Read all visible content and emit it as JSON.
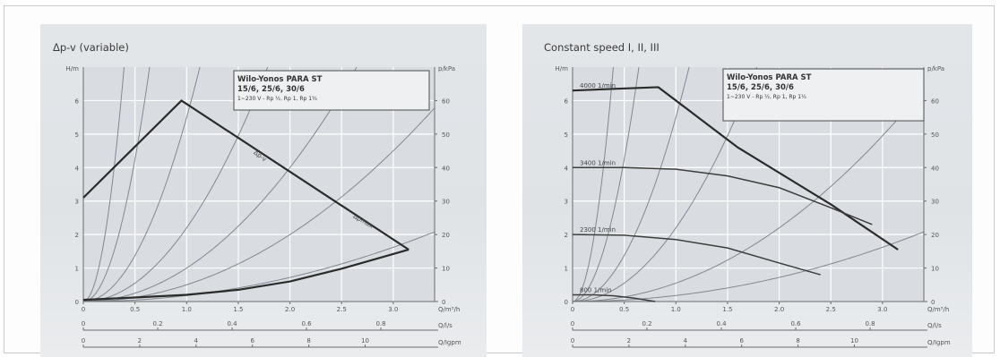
{
  "chart_data": [
    {
      "type": "line",
      "title": "Δp-v (variable)",
      "xlabel": "Q/m³/h",
      "ylabel": "H/m",
      "ylabel_right": "p/kPa",
      "xlim": [
        0,
        3.4
      ],
      "ylim": [
        0,
        7
      ],
      "y2lim": [
        0,
        70
      ],
      "x_ticks": [
        "0",
        "0.5",
        "1.0",
        "1.5",
        "2.0",
        "2.5",
        "3.0"
      ],
      "y_ticks": [
        "0",
        "1",
        "2",
        "3",
        "4",
        "5",
        "6"
      ],
      "y2_ticks": [
        "0",
        "10",
        "20",
        "30",
        "40",
        "50",
        "60"
      ],
      "secondary_axes": [
        {
          "label": "Q/l/s",
          "ticks": [
            "0",
            "0.2",
            "0.4",
            "0.6",
            "0.8"
          ],
          "values": [
            0,
            0.2,
            0.4,
            0.6,
            0.8
          ]
        },
        {
          "label": "Q/Igpm",
          "ticks": [
            "0",
            "2",
            "4",
            "6",
            "8",
            "10"
          ],
          "values": [
            0,
            2,
            4,
            6,
            8,
            10
          ]
        }
      ],
      "box": {
        "title": "Wilo-Yonos PARA ST",
        "subtitle": "15/6, 25/6, 30/6",
        "note": "1~230 V - Rp ½, Rp 1, Rp 1¼"
      },
      "annotations": [
        {
          "text": "Δp-v",
          "x": 1.7,
          "y": 4.3,
          "angle": 36
        },
        {
          "text": "Δpmax",
          "x": 2.7,
          "y": 2.35,
          "angle": 30
        }
      ],
      "series": [
        {
          "values_x": [
            0,
            0.95,
            3.15
          ],
          "values_y": [
            3.1,
            6.0,
            1.55
          ],
          "role": "upper"
        },
        {
          "values_x": [
            0,
            0.5,
            1.0,
            1.5,
            2.0,
            2.5,
            3.15
          ],
          "values_y": [
            0.05,
            0.12,
            0.2,
            0.35,
            0.6,
            0.98,
            1.55
          ],
          "role": "lower"
        }
      ],
      "system_curve_coefficients": [
        45,
        17,
        5.5,
        2.2,
        1.0,
        0.5,
        0.18
      ],
      "grid": true
    },
    {
      "type": "line",
      "title": "Constant speed I, II, III",
      "xlabel": "Q/m³/h",
      "ylabel": "H/m",
      "ylabel_right": "p/kPa",
      "xlim": [
        0,
        3.4
      ],
      "ylim": [
        0,
        7
      ],
      "y2lim": [
        0,
        70
      ],
      "x_ticks": [
        "0",
        "0.5",
        "1.0",
        "1.5",
        "2.0",
        "2.5",
        "3.0"
      ],
      "y_ticks": [
        "0",
        "1",
        "2",
        "3",
        "4",
        "5",
        "6"
      ],
      "y2_ticks": [
        "0",
        "10",
        "20",
        "30",
        "40",
        "50",
        "60"
      ],
      "secondary_axes": [
        {
          "label": "Q/l/s",
          "ticks": [
            "0",
            "0.2",
            "0.4",
            "0.6",
            "0.8"
          ],
          "values": [
            0,
            0.2,
            0.4,
            0.6,
            0.8
          ]
        },
        {
          "label": "Q/Igpm",
          "ticks": [
            "0",
            "2",
            "4",
            "6",
            "8",
            "10"
          ],
          "values": [
            0,
            2,
            4,
            6,
            8,
            10
          ]
        }
      ],
      "box": {
        "title": "Wilo-Yonos PARA ST",
        "subtitle": "15/6, 25/6, 30/6",
        "note": "1~230 V - Rp ½, Rp 1, Rp 1¼"
      },
      "series": [
        {
          "name": "4000 1/min",
          "values_x": [
            0,
            0.4,
            0.83,
            1.6,
            2.5,
            3.15
          ],
          "values_y": [
            6.3,
            6.35,
            6.4,
            4.6,
            2.9,
            1.55
          ]
        },
        {
          "name": "3400 1/min",
          "values_x": [
            0,
            0.5,
            1.0,
            1.5,
            2.0,
            2.5,
            2.9
          ],
          "values_y": [
            4.0,
            4.0,
            3.95,
            3.75,
            3.4,
            2.8,
            2.3
          ]
        },
        {
          "name": "2300 1/min",
          "values_x": [
            0,
            0.5,
            1.0,
            1.5,
            2.0,
            2.4
          ],
          "values_y": [
            2.0,
            1.98,
            1.85,
            1.6,
            1.15,
            0.8
          ]
        },
        {
          "name": "800 1/min",
          "values_x": [
            0,
            0.2,
            0.4,
            0.6,
            0.8
          ],
          "values_y": [
            0.2,
            0.2,
            0.17,
            0.1,
            0.0
          ]
        }
      ],
      "system_curve_coefficients": [
        45,
        17,
        5.5,
        2.2,
        0.55,
        0.18
      ],
      "grid": true
    }
  ]
}
